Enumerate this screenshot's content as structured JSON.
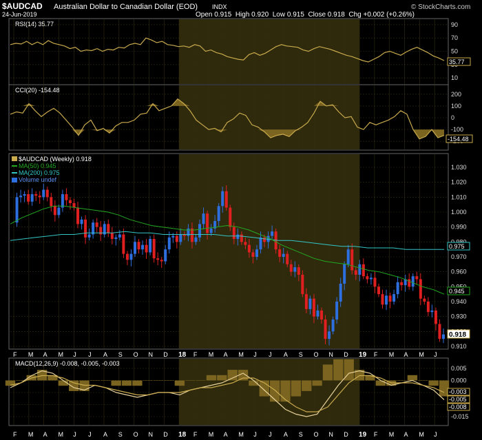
{
  "header": {
    "symbol": "$AUDCAD",
    "title": "Australian Dollar to Canadian Dollar (EOD)",
    "exchange": "INDX",
    "date": "24-Jun-2019",
    "ohlc": "Open 0.915  High 0.920  Low 0.915  Close 0.918  Chg +0.002 (+0.26%)",
    "copyright": "© StockCharts.com"
  },
  "colors": {
    "background": "#000000",
    "grid": "#2a2400",
    "highlight": "#2f2a0c",
    "up": "#2e6fe0",
    "down": "#e02020",
    "ma50": "#22aa22",
    "ma200": "#33c6c6",
    "indicator": "#c9aa4d",
    "fill": "#7a6420"
  },
  "time_axis": {
    "labels": [
      "F",
      "M",
      "A",
      "M",
      "J",
      "J",
      "A",
      "S",
      "O",
      "N",
      "D",
      "18",
      "F",
      "M",
      "A",
      "M",
      "J",
      "J",
      "A",
      "S",
      "O",
      "N",
      "D",
      "19",
      "F",
      "M",
      "A",
      "M",
      "J"
    ],
    "bold": [
      "18",
      "19"
    ]
  },
  "rsi_panel": {
    "label": "RSI(14) 35.77",
    "value_tag": "35.77",
    "ticks": [
      "90",
      "70",
      "50",
      "30",
      "10"
    ]
  },
  "cci_panel": {
    "label": "CCI(20) -154.48",
    "value_tag": "-154.48",
    "ticks": [
      "200",
      "100",
      "0",
      "-100",
      "-200"
    ]
  },
  "price_panel": {
    "legend": [
      "$AUDCAD (Weekly) 0.918",
      "MA(50) 0.945",
      "MA(200) 0.975",
      "Volume undef"
    ],
    "ticks": [
      "1.030",
      "1.020",
      "1.010",
      "1.000",
      "0.990",
      "0.980",
      "0.970",
      "0.960",
      "0.950",
      "0.940",
      "0.930",
      "0.920",
      "0.910"
    ],
    "tags": {
      "close": "0.918",
      "ma50": "0.945",
      "ma200": "0.975"
    }
  },
  "macd_panel": {
    "label": "MACD(12,26,9) -0.008, -0.005, -0.003",
    "ticks": [
      "0.005",
      "0.000",
      "-0.005",
      "-0.010",
      "-0.015"
    ],
    "tags": [
      "-0.003",
      "-0.005",
      "-0.008"
    ]
  },
  "chart_data": {
    "type": "candlestick",
    "title": "Australian Dollar to Canadian Dollar (EOD)",
    "period": "Weekly",
    "x_months": [
      "F",
      "M",
      "A",
      "M",
      "J",
      "J",
      "A",
      "S",
      "O",
      "N",
      "D",
      "18",
      "F",
      "M",
      "A",
      "M",
      "J",
      "J",
      "A",
      "S",
      "O",
      "N",
      "D",
      "19",
      "F",
      "M",
      "A",
      "M",
      "J"
    ],
    "close_path": [
      0.993,
      1.01,
      1.011,
      1.012,
      1.007,
      1.012,
      1.011,
      1.01,
      1.015,
      1.01,
      1.004,
      0.998,
      1.003,
      1.012,
      1.008,
      1.006,
      1.003,
      0.992,
      0.995,
      0.983,
      0.985,
      0.993,
      0.99,
      0.985,
      0.992,
      0.986,
      0.982,
      0.983,
      0.985,
      0.972,
      0.968,
      0.972,
      0.98,
      0.975,
      0.978,
      0.973,
      0.982,
      0.969,
      0.968,
      0.967,
      0.975,
      0.983,
      0.984,
      0.98,
      0.985,
      0.984,
      0.989,
      0.98,
      0.983,
      0.992,
      0.999,
      0.986,
      0.989,
      0.994,
      1.004,
      1.014,
      1.003,
      0.99,
      0.982,
      0.985,
      0.98,
      0.978,
      0.973,
      0.97,
      0.975,
      0.983,
      0.98,
      0.984,
      0.987,
      0.975,
      0.97,
      0.972,
      0.965,
      0.96,
      0.963,
      0.958,
      0.945,
      0.935,
      0.942,
      0.93,
      0.934,
      0.928,
      0.915,
      0.92,
      0.928,
      0.94,
      0.952,
      0.965,
      0.975,
      0.961,
      0.958,
      0.965,
      0.957,
      0.955,
      0.956,
      0.95,
      0.945,
      0.938,
      0.944,
      0.94,
      0.945,
      0.953,
      0.951,
      0.955,
      0.95,
      0.957,
      0.955,
      0.942,
      0.94,
      0.933,
      0.934,
      0.925,
      0.915,
      0.918
    ],
    "ma50_path": [
      0.992,
      0.996,
      0.999,
      1.002,
      1.004,
      1.004,
      1.003,
      1.002,
      1.001,
      1.0,
      0.998,
      0.995,
      0.993,
      0.991,
      0.99,
      0.989,
      0.988,
      0.988,
      0.989,
      0.99,
      0.991,
      0.99,
      0.988,
      0.985,
      0.982,
      0.978,
      0.975,
      0.972,
      0.969,
      0.967,
      0.966,
      0.965,
      0.963,
      0.961,
      0.96,
      0.958,
      0.956,
      0.953,
      0.95,
      0.948,
      0.945
    ],
    "ma200_path": [
      0.981,
      0.982,
      0.983,
      0.984,
      0.985,
      0.985,
      0.986,
      0.986,
      0.986,
      0.987,
      0.986,
      0.986,
      0.985,
      0.985,
      0.985,
      0.985,
      0.985,
      0.984,
      0.984,
      0.983,
      0.982,
      0.981,
      0.981,
      0.98,
      0.979,
      0.978,
      0.977,
      0.977,
      0.976,
      0.976,
      0.976,
      0.975,
      0.975,
      0.975,
      0.975
    ],
    "rsi_path": [
      60,
      62,
      61,
      65,
      60,
      64,
      60,
      66,
      62,
      60,
      58,
      54,
      56,
      50,
      52,
      51,
      54,
      50,
      53,
      52,
      56,
      55,
      60,
      62,
      60,
      70,
      67,
      63,
      65,
      60,
      59,
      57,
      58,
      56,
      60,
      58,
      50,
      52,
      48,
      46,
      42,
      40,
      38,
      37,
      45,
      48,
      44,
      47,
      52,
      57,
      60,
      58,
      57,
      56,
      52,
      50,
      54,
      57,
      55,
      53,
      50,
      47,
      44,
      42,
      39,
      36,
      34,
      38,
      42,
      48,
      50,
      47,
      44,
      49,
      53,
      56,
      52,
      48,
      43,
      40,
      36
    ],
    "cci_path": [
      30,
      50,
      40,
      120,
      60,
      10,
      50,
      80,
      40,
      -20,
      -80,
      -150,
      -60,
      -20,
      -110,
      -90,
      -130,
      -70,
      -40,
      -40,
      -20,
      30,
      40,
      120,
      60,
      80,
      100,
      160,
      120,
      60,
      -20,
      -60,
      -100,
      -90,
      -120,
      -40,
      -10,
      40,
      20,
      -60,
      -80,
      -120,
      -170,
      -150,
      -140,
      -160,
      -110,
      -80,
      -40,
      40,
      140,
      100,
      110,
      50,
      0,
      10,
      -80,
      -100,
      -40,
      -60,
      -40,
      -20,
      10,
      60,
      30,
      -100,
      -180,
      -160,
      -100,
      -170,
      -150
    ],
    "macd_path": [
      -0.003,
      -0.001,
      0.002,
      0.004,
      0.003,
      0.0,
      -0.003,
      -0.004,
      -0.002,
      -0.003,
      -0.005,
      -0.006,
      -0.007,
      -0.006,
      -0.005,
      -0.005,
      -0.006,
      -0.004,
      -0.003,
      -0.002,
      -0.001,
      0.001,
      0.003,
      0.0,
      -0.004,
      -0.008,
      -0.012,
      -0.014,
      -0.015,
      -0.014,
      -0.008,
      -0.002,
      0.003,
      0.004,
      0.003,
      0.0,
      -0.002,
      -0.001,
      0.0,
      -0.002,
      -0.004,
      -0.008
    ],
    "signal_path": [
      -0.002,
      -0.001,
      0.001,
      0.002,
      0.002,
      0.001,
      -0.001,
      -0.002,
      -0.002,
      -0.003,
      -0.004,
      -0.005,
      -0.006,
      -0.006,
      -0.005,
      -0.005,
      -0.005,
      -0.004,
      -0.003,
      -0.003,
      -0.002,
      -0.001,
      0.001,
      0.001,
      -0.001,
      -0.004,
      -0.008,
      -0.011,
      -0.013,
      -0.013,
      -0.011,
      -0.006,
      -0.001,
      0.002,
      0.002,
      0.001,
      -0.001,
      -0.001,
      -0.001,
      -0.002,
      -0.003,
      -0.005
    ]
  }
}
